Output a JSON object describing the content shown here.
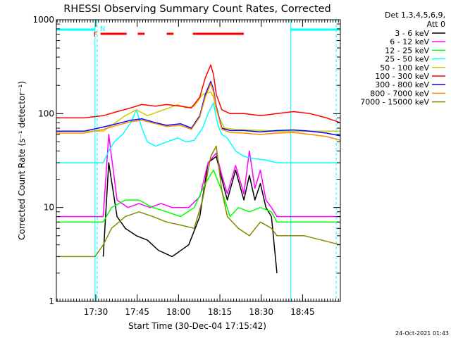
{
  "chart_data": {
    "type": "line",
    "title": "RHESSI Observing Summary Count Rates, Corrected",
    "xlabel": "Start Time (30-Dec-04 17:15:42)",
    "ylabel": "Corrected Count Rate (s⁻¹ detector⁻¹)",
    "ylog": true,
    "ylim": [
      1,
      1000
    ],
    "xlim_minutes": [
      0,
      103
    ],
    "x_ticks": [
      {
        "label": "17:30",
        "min": 14.3
      },
      {
        "label": "17:45",
        "min": 29.3
      },
      {
        "label": "18:00",
        "min": 44.3
      },
      {
        "label": "18:15",
        "min": 59.3
      },
      {
        "label": "18:30",
        "min": 74.3
      },
      {
        "label": "18:45",
        "min": 89.3
      }
    ],
    "y_ticks": [
      {
        "label": "1",
        "v": 1
      },
      {
        "label": "10",
        "v": 10
      },
      {
        "label": "100",
        "v": 100
      },
      {
        "label": "1000",
        "v": 1000
      }
    ],
    "legend_header": [
      "Det 1,3,4,5,6,9,",
      "Att 0"
    ],
    "legend_position": "right",
    "series": [
      {
        "name": "3 - 6 keV",
        "color": "#000000",
        "x": [
          0,
          17,
          19,
          22,
          25,
          29,
          33,
          37,
          42,
          48,
          52,
          55,
          58,
          60,
          62,
          65,
          68,
          70,
          72,
          74,
          76,
          78,
          80
        ],
        "y": [
          null,
          3,
          30,
          8,
          6,
          5,
          4.5,
          3.5,
          3,
          4,
          8,
          30,
          35,
          20,
          12,
          25,
          12,
          22,
          12,
          18,
          10,
          8,
          2
        ]
      },
      {
        "name": "6 - 12 keV",
        "color": "#ff00ff",
        "x": [
          0,
          17,
          19,
          22,
          26,
          30,
          34,
          38,
          42,
          48,
          52,
          55,
          58,
          60,
          62,
          65,
          68,
          70,
          72,
          74,
          76,
          78,
          80,
          90,
          103
        ],
        "y": [
          8,
          8,
          60,
          12,
          10,
          11,
          10,
          11,
          10,
          10,
          13,
          30,
          38,
          22,
          14,
          28,
          14,
          40,
          16,
          25,
          12,
          10,
          8,
          8,
          8
        ]
      },
      {
        "name": "12 - 25 keV",
        "color": "#00ff00",
        "x": [
          0,
          17,
          20,
          25,
          30,
          35,
          40,
          45,
          50,
          54,
          57,
          60,
          63,
          66,
          70,
          74,
          78,
          80,
          90,
          103
        ],
        "y": [
          7,
          7,
          10,
          12,
          12,
          10,
          9,
          8,
          10,
          18,
          25,
          15,
          8,
          10,
          9,
          10,
          9,
          7,
          7,
          7
        ]
      },
      {
        "name": "25 - 50 keV",
        "color": "#00ffff",
        "x": [
          0,
          14,
          17,
          19,
          21,
          24,
          27,
          29,
          31,
          33,
          36,
          40,
          44,
          47,
          50,
          53,
          55,
          57,
          58,
          59,
          60,
          62,
          65,
          68,
          72,
          76,
          80,
          90,
          103
        ],
        "y": [
          30,
          30,
          30,
          40,
          50,
          60,
          80,
          110,
          70,
          50,
          45,
          50,
          55,
          50,
          52,
          70,
          100,
          130,
          90,
          70,
          60,
          55,
          40,
          35,
          33,
          32,
          30,
          30,
          30
        ]
      },
      {
        "name": "50 - 100 keV",
        "color": "#cccc00",
        "x": [
          0,
          17,
          20,
          25,
          29,
          33,
          37,
          41,
          44,
          47,
          50,
          53,
          56,
          57,
          58,
          59,
          61,
          65,
          70,
          76,
          80,
          90,
          103
        ],
        "y": [
          65,
          65,
          75,
          95,
          110,
          95,
          105,
          115,
          125,
          115,
          120,
          160,
          170,
          150,
          110,
          90,
          70,
          68,
          67,
          66,
          65,
          65,
          65
        ]
      },
      {
        "name": "100 - 300 keV",
        "color": "#ff0000",
        "x": [
          0,
          10,
          17,
          22,
          27,
          31,
          36,
          40,
          45,
          49,
          52,
          54,
          56,
          57,
          58,
          60,
          63,
          68,
          74,
          80,
          86,
          92,
          98,
          103
        ],
        "y": [
          90,
          90,
          95,
          105,
          115,
          125,
          120,
          125,
          120,
          115,
          150,
          240,
          330,
          260,
          160,
          110,
          100,
          100,
          95,
          100,
          105,
          100,
          90,
          80
        ]
      },
      {
        "name": "300 - 800 keV",
        "color": "#0000ff",
        "x": [
          0,
          10,
          17,
          22,
          27,
          31,
          36,
          40,
          45,
          49,
          52,
          54,
          56,
          57,
          58,
          60,
          63,
          68,
          74,
          80,
          86,
          92,
          98,
          103
        ],
        "y": [
          65,
          65,
          72,
          78,
          85,
          88,
          80,
          75,
          78,
          70,
          95,
          160,
          220,
          180,
          120,
          70,
          66,
          66,
          64,
          66,
          67,
          65,
          62,
          58
        ]
      },
      {
        "name": "800 - 7000 keV",
        "color": "#ff8800",
        "x": [
          0,
          10,
          17,
          22,
          27,
          31,
          36,
          40,
          45,
          49,
          52,
          54,
          56,
          57,
          58,
          60,
          63,
          68,
          74,
          80,
          86,
          92,
          98,
          103
        ],
        "y": [
          62,
          62,
          68,
          75,
          82,
          85,
          78,
          73,
          75,
          68,
          92,
          150,
          210,
          170,
          115,
          68,
          63,
          62,
          60,
          62,
          63,
          60,
          57,
          52
        ]
      },
      {
        "name": "7000 - 15000 keV",
        "color": "#888800",
        "x": [
          0,
          14,
          17,
          20,
          25,
          30,
          35,
          40,
          45,
          50,
          53,
          56,
          58,
          60,
          62,
          66,
          70,
          74,
          78,
          80,
          90,
          103
        ],
        "y": [
          3,
          3,
          4,
          6,
          8,
          9,
          8,
          7,
          6.5,
          6,
          12,
          35,
          45,
          15,
          8,
          6,
          5,
          7,
          6,
          5,
          5,
          4
        ]
      }
    ],
    "markers": {
      "N_label": "N",
      "F_label": "F",
      "night_color": "#00ffff",
      "flare_color": "#ff0000",
      "night_segments": [
        [
          0,
          14
        ],
        [
          85,
          103
        ]
      ],
      "flare_segments": [
        [
          16,
          25.5
        ],
        [
          29.5,
          32
        ],
        [
          40,
          42.5
        ],
        [
          49.5,
          68
        ]
      ],
      "night_boundaries": [
        14,
        85
      ],
      "dashed_boundaries": [
        14.8,
        101.5
      ]
    }
  },
  "footer_timestamp": "24-Oct-2021 01:43"
}
